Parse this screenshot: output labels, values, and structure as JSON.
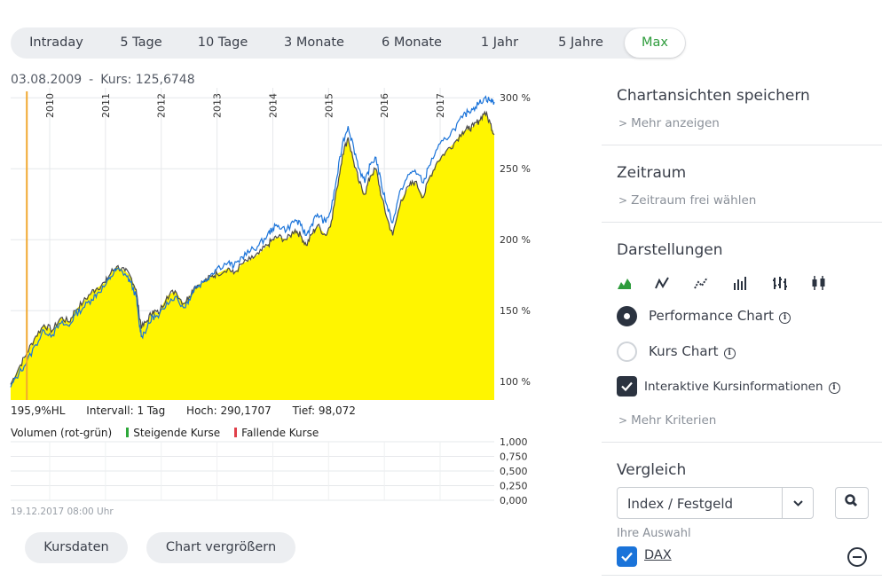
{
  "tabs": [
    {
      "label": "Intraday",
      "active": false
    },
    {
      "label": "5 Tage",
      "active": false
    },
    {
      "label": "10 Tage",
      "active": false
    },
    {
      "label": "3 Monate",
      "active": false
    },
    {
      "label": "6 Monate",
      "active": false
    },
    {
      "label": "1 Jahr",
      "active": false
    },
    {
      "label": "5 Jahre",
      "active": false
    },
    {
      "label": "Max",
      "active": true
    }
  ],
  "quote": {
    "date": "03.08.2009",
    "separator": "-",
    "kurs": "Kurs: 125,6748"
  },
  "stats": {
    "hl": "195,9%HL",
    "interval": "Intervall: 1 Tag",
    "high": "Hoch: 290,1707",
    "low": "Tief: 98,072"
  },
  "volume": {
    "title": "Volumen (rot-grün)",
    "rising": "Steigende Kurse",
    "falling": "Fallende Kurse"
  },
  "timestamp": "19.12.2017 08:00 Uhr",
  "buttons": {
    "kursdaten": "Kursdaten",
    "enlarge": "Chart vergrößern"
  },
  "panel": {
    "save": {
      "title": "Chartansichten speichern",
      "link": "Mehr anzeigen"
    },
    "period": {
      "title": "Zeitraum",
      "link": "Zeitraum frei wählen"
    },
    "display": {
      "title": "Darstellungen",
      "icons": [
        "mountain-chart-icon",
        "line-chart-icon",
        "dotted-line-chart-icon",
        "bar-chart-icon",
        "ohlc-chart-icon",
        "candlestick-chart-icon"
      ],
      "performance_label": "Performance Chart",
      "kurs_label": "Kurs Chart",
      "interactive_label": "Interaktive Kursinformationen",
      "more_link": "Mehr Kriterien",
      "selected": "performance"
    },
    "compare": {
      "title": "Vergleich",
      "select_value": "Index / Festgeld",
      "your_selection": "Ihre Auswahl",
      "item": "DAX"
    }
  },
  "colors": {
    "accent_green": "#2e9c3c",
    "fill": "#fff500",
    "series_main": "#4a4a4a",
    "series_compare": "#1a73d9",
    "marker": "#f0a830"
  },
  "chart_data": {
    "type": "area",
    "title": "",
    "xlabel": "",
    "ylabel": "",
    "x_tick_labels": [
      "2010",
      "2011",
      "2012",
      "2013",
      "2014",
      "2015",
      "2016",
      "2017"
    ],
    "y_tick_labels": [
      "100 %",
      "150 %",
      "200 %",
      "250 %",
      "300 %"
    ],
    "y_unit": "%",
    "ylim": [
      87,
      307
    ],
    "x_range": [
      2009.3,
      2017.97
    ],
    "marker_x": 2009.59,
    "grid": true,
    "series": [
      {
        "x": [
          2009.3,
          2009.45,
          2009.59,
          2009.75,
          2009.9,
          2010.05,
          2010.2,
          2010.35,
          2010.45,
          2010.6,
          2010.75,
          2010.85,
          2011.0,
          2011.1,
          2011.2,
          2011.35,
          2011.45,
          2011.55,
          2011.6,
          2011.65,
          2011.75,
          2011.85,
          2011.95,
          2012.1,
          2012.25,
          2012.4,
          2012.5,
          2012.6,
          2012.75,
          2012.9,
          2013.0,
          2013.2,
          2013.3,
          2013.45,
          2013.6,
          2013.75,
          2013.9,
          2014.0,
          2014.1,
          2014.25,
          2014.4,
          2014.5,
          2014.6,
          2014.7,
          2014.8,
          2014.95,
          2015.05,
          2015.15,
          2015.25,
          2015.35,
          2015.45,
          2015.55,
          2015.65,
          2015.75,
          2015.85,
          2015.95,
          2016.05,
          2016.15,
          2016.3,
          2016.45,
          2016.55,
          2016.7,
          2016.8,
          2016.95,
          2017.1,
          2017.25,
          2017.4,
          2017.5,
          2017.6,
          2017.7,
          2017.8,
          2017.9,
          2017.97
        ],
        "values": [
          98,
          110,
          120,
          132,
          140,
          136,
          145,
          142,
          150,
          156,
          163,
          166,
          170,
          177,
          181,
          178,
          174,
          165,
          148,
          138,
          143,
          150,
          148,
          160,
          164,
          155,
          160,
          167,
          170,
          174,
          176,
          180,
          176,
          183,
          186,
          190,
          196,
          200,
          202,
          200,
          207,
          203,
          196,
          204,
          210,
          203,
          213,
          236,
          260,
          272,
          255,
          240,
          232,
          245,
          250,
          230,
          215,
          203,
          228,
          238,
          241,
          230,
          243,
          255,
          262,
          268,
          276,
          278,
          280,
          284,
          290,
          282,
          274
        ]
      },
      {
        "x": [
          2009.3,
          2009.45,
          2009.59,
          2009.75,
          2009.9,
          2010.05,
          2010.2,
          2010.35,
          2010.45,
          2010.6,
          2010.75,
          2010.85,
          2011.0,
          2011.1,
          2011.2,
          2011.35,
          2011.45,
          2011.55,
          2011.6,
          2011.65,
          2011.75,
          2011.85,
          2011.95,
          2012.1,
          2012.25,
          2012.4,
          2012.5,
          2012.6,
          2012.75,
          2012.9,
          2013.0,
          2013.2,
          2013.3,
          2013.45,
          2013.6,
          2013.75,
          2013.9,
          2014.0,
          2014.1,
          2014.25,
          2014.4,
          2014.5,
          2014.6,
          2014.7,
          2014.8,
          2014.95,
          2015.05,
          2015.15,
          2015.25,
          2015.35,
          2015.45,
          2015.55,
          2015.65,
          2015.75,
          2015.85,
          2015.95,
          2016.05,
          2016.15,
          2016.3,
          2016.45,
          2016.55,
          2016.7,
          2016.8,
          2016.95,
          2017.1,
          2017.25,
          2017.4,
          2017.5,
          2017.6,
          2017.7,
          2017.8,
          2017.9,
          2017.97
        ],
        "values": [
          96,
          106,
          114,
          126,
          136,
          133,
          141,
          139,
          147,
          152,
          158,
          162,
          168,
          174,
          179,
          176,
          170,
          160,
          142,
          132,
          138,
          146,
          145,
          156,
          160,
          152,
          158,
          166,
          170,
          176,
          180,
          184,
          181,
          188,
          192,
          196,
          203,
          208,
          210,
          207,
          214,
          210,
          203,
          211,
          218,
          212,
          222,
          244,
          268,
          280,
          265,
          250,
          240,
          253,
          258,
          238,
          224,
          212,
          236,
          246,
          249,
          240,
          252,
          264,
          271,
          278,
          286,
          290,
          293,
          296,
          300,
          298,
          297
        ]
      }
    ]
  },
  "volume_data": {
    "y_tick_labels": [
      "1,000",
      "0,750",
      "0,500",
      "0,250",
      "0,000"
    ]
  }
}
